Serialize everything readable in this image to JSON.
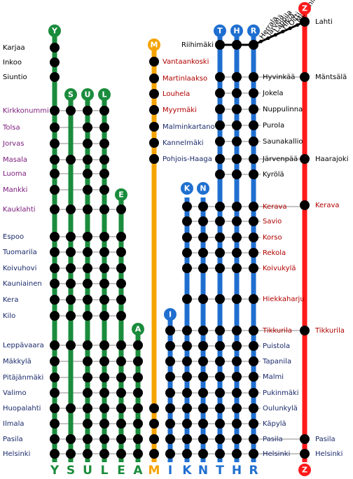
{
  "colors": {
    "green": "#1a8c3c",
    "orange": "#f5a300",
    "blue": "#1f6fd0",
    "red": "#ff1a1a",
    "line_gray": "#888888",
    "stop": "#000000",
    "text_dark": "#1a2a6b",
    "text_purple": "#7a1a7a",
    "text_red": "#b00000",
    "text_black": "#000000"
  },
  "left_stations": [
    {
      "name": "Karjaa",
      "color": "text_black"
    },
    {
      "name": "Inkoo",
      "color": "text_black"
    },
    {
      "name": "Siuntio",
      "color": "text_black"
    },
    {
      "name": "Kirkkonummi",
      "color": "text_purple"
    },
    {
      "name": "Tolsa",
      "color": "text_purple"
    },
    {
      "name": "Jorvas",
      "color": "text_purple"
    },
    {
      "name": "Masala",
      "color": "text_purple"
    },
    {
      "name": "Luoma",
      "color": "text_purple"
    },
    {
      "name": "Mankki",
      "color": "text_purple"
    },
    {
      "name": "Kauklahti",
      "color": "text_purple"
    },
    {
      "name": "Espoo",
      "color": "text_dark"
    },
    {
      "name": "Tuomarila",
      "color": "text_dark"
    },
    {
      "name": "Koivuhovi",
      "color": "text_dark"
    },
    {
      "name": "Kauniainen",
      "color": "text_dark"
    },
    {
      "name": "Kera",
      "color": "text_dark"
    },
    {
      "name": "Kilo",
      "color": "text_dark"
    },
    {
      "name": "Leppävaara",
      "color": "text_dark"
    },
    {
      "name": "Mäkkylä",
      "color": "text_dark"
    },
    {
      "name": "Pitäjänmäki",
      "color": "text_dark"
    },
    {
      "name": "Valimo",
      "color": "text_dark"
    },
    {
      "name": "Huopalahti",
      "color": "text_dark"
    },
    {
      "name": "Ilmala",
      "color": "text_dark"
    },
    {
      "name": "Pasila",
      "color": "text_dark"
    },
    {
      "name": "Helsinki",
      "color": "text_dark"
    }
  ],
  "m_stations": [
    {
      "name": "Vantaankoski",
      "color": "text_red"
    },
    {
      "name": "Martinlaakso",
      "color": "text_red"
    },
    {
      "name": "Louhela",
      "color": "text_red"
    },
    {
      "name": "Myyrmäki",
      "color": "text_red"
    },
    {
      "name": "Malminkartano",
      "color": "text_dark"
    },
    {
      "name": "Kannelmäki",
      "color": "text_dark"
    },
    {
      "name": "Pohjois-Haaga",
      "color": "text_dark"
    }
  ],
  "right_stations": [
    {
      "name": "Hyvinkää",
      "color": "text_black"
    },
    {
      "name": "Jokela",
      "color": "text_black"
    },
    {
      "name": "Nuppulinna",
      "color": "text_black"
    },
    {
      "name": "Purola",
      "color": "text_black"
    },
    {
      "name": "Saunakallio",
      "color": "text_black"
    },
    {
      "name": "Järvenpää",
      "color": "text_black"
    },
    {
      "name": "Kyrölä",
      "color": "text_black"
    },
    {
      "name": "Kerava",
      "color": "text_red"
    },
    {
      "name": "Savio",
      "color": "text_red"
    },
    {
      "name": "Korso",
      "color": "text_red"
    },
    {
      "name": "Rekola",
      "color": "text_red"
    },
    {
      "name": "Koivukylä",
      "color": "text_red"
    },
    {
      "name": "Hiekkaharju",
      "color": "text_red"
    },
    {
      "name": "Tikkurila",
      "color": "text_red"
    },
    {
      "name": "Puistola",
      "color": "text_dark"
    },
    {
      "name": "Tapanila",
      "color": "text_dark"
    },
    {
      "name": "Malmi",
      "color": "text_dark"
    },
    {
      "name": "Pukinmäki",
      "color": "text_dark"
    },
    {
      "name": "Oulunkylä",
      "color": "text_dark"
    },
    {
      "name": "Käpylä",
      "color": "text_dark"
    },
    {
      "name": "Pasila",
      "color": "text_dark"
    },
    {
      "name": "Helsinki",
      "color": "text_dark"
    }
  ],
  "riihimaki": {
    "name": "Riihimäki",
    "color": "text_black"
  },
  "z_stations": [
    {
      "name": "Lahti",
      "color": "text_black"
    },
    {
      "name": "Mäntsälä",
      "color": "text_black"
    },
    {
      "name": "Haarajoki",
      "color": "text_black"
    },
    {
      "name": "Kerava",
      "color": "text_red"
    },
    {
      "name": "Tikkurila",
      "color": "text_red"
    },
    {
      "name": "Pasila",
      "color": "text_dark"
    },
    {
      "name": "Helsinki",
      "color": "text_dark"
    }
  ],
  "diagonal_stations": [
    "Herrala",
    "Järvelä",
    "Lappila",
    "Hikiä",
    "Oitti",
    "Mommila"
  ],
  "lines": [
    {
      "letter": "Y",
      "color": "green"
    },
    {
      "letter": "S",
      "color": "green"
    },
    {
      "letter": "U",
      "color": "green"
    },
    {
      "letter": "L",
      "color": "green"
    },
    {
      "letter": "E",
      "color": "green"
    },
    {
      "letter": "A",
      "color": "green"
    },
    {
      "letter": "M",
      "color": "orange"
    },
    {
      "letter": "I",
      "color": "blue"
    },
    {
      "letter": "K",
      "color": "blue"
    },
    {
      "letter": "N",
      "color": "blue"
    },
    {
      "letter": "T",
      "color": "blue"
    },
    {
      "letter": "H",
      "color": "blue"
    },
    {
      "letter": "R",
      "color": "blue"
    },
    {
      "letter": "Z",
      "color": "red"
    }
  ]
}
